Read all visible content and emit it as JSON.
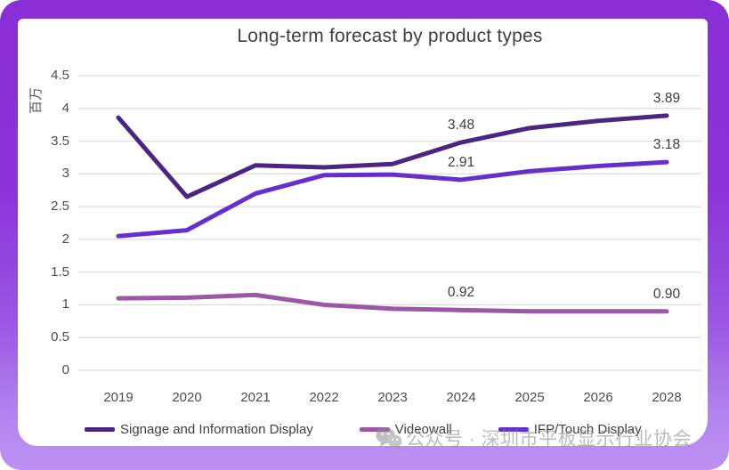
{
  "chart_data": {
    "type": "line",
    "title": "Long-term forecast by product types",
    "y_unit_label": "百万",
    "categories": [
      "2019",
      "2020",
      "2021",
      "2022",
      "2023",
      "2024",
      "2025",
      "2026",
      "2028"
    ],
    "ylim": [
      0,
      4.5
    ],
    "yticks": [
      "0",
      "0.5",
      "1",
      "1.5",
      "2",
      "2.5",
      "3",
      "3.5",
      "4",
      "4.5"
    ],
    "grid": true,
    "legend_position": "bottom",
    "series": [
      {
        "name": "Signage and Information Display",
        "color": "#4a2683",
        "values": [
          3.86,
          2.65,
          3.13,
          3.1,
          3.15,
          3.48,
          3.7,
          3.81,
          3.89
        ]
      },
      {
        "name": "Videowall",
        "color": "#9c57a5",
        "values": [
          1.1,
          1.11,
          1.15,
          1.0,
          0.94,
          0.92,
          0.9,
          0.9,
          0.9
        ]
      },
      {
        "name": "IFP/Touch Display",
        "color": "#6430cd",
        "values": [
          2.05,
          2.14,
          2.7,
          2.98,
          2.99,
          2.91,
          3.04,
          3.12,
          3.18
        ]
      }
    ],
    "annotations": [
      {
        "series": 0,
        "index": 5,
        "text": "3.48"
      },
      {
        "series": 2,
        "index": 5,
        "text": "2.91"
      },
      {
        "series": 1,
        "index": 5,
        "text": "0.92"
      },
      {
        "series": 0,
        "index": 8,
        "text": "3.89"
      },
      {
        "series": 2,
        "index": 8,
        "text": "3.18"
      },
      {
        "series": 1,
        "index": 8,
        "text": "0.90"
      }
    ]
  },
  "colors": {
    "frame_gradient_top": "#8a2ed7",
    "frame_gradient_bottom": "#bd92f3",
    "gridline": "#dcdcdc",
    "title_text": "#404040",
    "tick_text": "#4d4d4d"
  },
  "watermark": {
    "icon": "wechat-icon",
    "text": "公众号 · 深圳市平板显示行业协会"
  }
}
